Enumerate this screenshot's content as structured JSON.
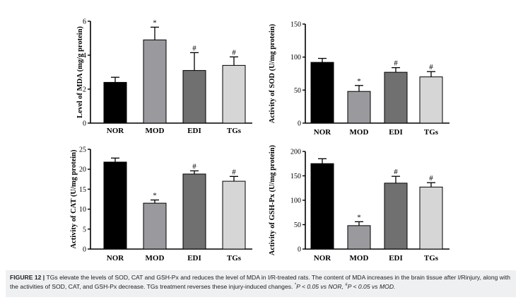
{
  "chart_data": [
    {
      "type": "bar",
      "ylabel": "Level of MDA (mg/g protein)",
      "categories": [
        "NOR",
        "MOD",
        "EDI",
        "TGs"
      ],
      "values": [
        2.4,
        4.9,
        3.1,
        3.4
      ],
      "errors": [
        0.3,
        0.75,
        1.05,
        0.5
      ],
      "significance": [
        "",
        "*",
        "#",
        "#"
      ],
      "ylim": [
        0,
        6
      ],
      "yticks": [
        0,
        2,
        4,
        6
      ],
      "colors": [
        "#000000",
        "#9a9a9e",
        "#707070",
        "#d6d6d6"
      ]
    },
    {
      "type": "bar",
      "ylabel": "Activity of SOD (U/mg protein)",
      "categories": [
        "NOR",
        "MOD",
        "EDI",
        "TGs"
      ],
      "values": [
        92,
        48,
        77,
        70
      ],
      "errors": [
        6,
        9,
        7,
        8
      ],
      "significance": [
        "",
        "*",
        "#",
        "#"
      ],
      "ylim": [
        0,
        150
      ],
      "yticks": [
        0,
        50,
        100,
        150
      ],
      "colors": [
        "#000000",
        "#9a9a9e",
        "#707070",
        "#d6d6d6"
      ]
    },
    {
      "type": "bar",
      "ylabel": "Activity of CAT (U/mg protein)",
      "categories": [
        "NOR",
        "MOD",
        "EDI",
        "TGs"
      ],
      "values": [
        21.8,
        11.5,
        18.8,
        17.0
      ],
      "errors": [
        1.0,
        0.8,
        0.8,
        1.2
      ],
      "significance": [
        "",
        "*",
        "#",
        "#"
      ],
      "ylim": [
        0,
        25
      ],
      "yticks": [
        0,
        5,
        10,
        15,
        20,
        25
      ],
      "colors": [
        "#000000",
        "#9a9a9e",
        "#707070",
        "#d6d6d6"
      ]
    },
    {
      "type": "bar",
      "ylabel": "Activity of GSH-Px (U/mg protein)",
      "categories": [
        "NOR",
        "MOD",
        "EDI",
        "TGs"
      ],
      "values": [
        175,
        48,
        135,
        127
      ],
      "errors": [
        10,
        8,
        14,
        9
      ],
      "significance": [
        "",
        "*",
        "#",
        "#"
      ],
      "ylim": [
        0,
        200
      ],
      "yticks": [
        0,
        50,
        100,
        150,
        200
      ],
      "colors": [
        "#000000",
        "#9a9a9e",
        "#707070",
        "#d6d6d6"
      ]
    }
  ],
  "caption": {
    "label": "FIGURE 12 |",
    "text_1": " TGs elevate the levels of SOD, CAT and GSH-Px and reduces the level of MDA in I/R-treated rats. The content of MDA increases in the brain tissue after I/Rinjury, along with the activities of SOD, CAT, and GSH-Px decrease. TGs treatment reverses these injury-induced changes. ",
    "sup_1": "*",
    "text_2": "P < 0.05 vs NOR, ",
    "sup_2": "#",
    "text_3": "P < 0.05 vs MOD."
  }
}
